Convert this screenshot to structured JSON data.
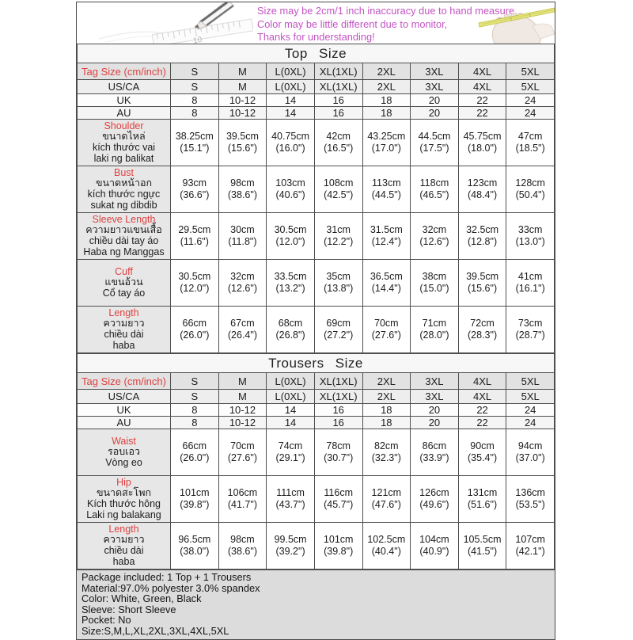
{
  "banner": {
    "lines": [
      "Size may be 2cm/1 inch inaccuracy due to hand measure,",
      "Color may be little different due to monitor,",
      "Thanks for understanding!"
    ],
    "illustrations": {
      "left": "pencil-ruler-sketch-icon",
      "right": "foot-tape-measure-icon"
    }
  },
  "colors": {
    "accent_red": "#e04040",
    "banner_magenta": "#c353c3",
    "label_gray": "#e7e7e7",
    "footer_gray": "#dcdcdc",
    "border": "#4f4f4f"
  },
  "top_table": {
    "title": "Top Size",
    "size_rows": [
      {
        "key": "tag",
        "red": true,
        "label": "Tag Size (cm/inch)",
        "values": [
          "S",
          "M",
          "L(0XL)",
          "XL(1XL)",
          "2XL",
          "3XL",
          "4XL",
          "5XL"
        ]
      },
      {
        "key": "usca",
        "red": false,
        "label": "US/CA",
        "values": [
          "S",
          "M",
          "L(0XL)",
          "XL(1XL)",
          "2XL",
          "3XL",
          "4XL",
          "5XL"
        ]
      },
      {
        "key": "uk",
        "red": false,
        "label": "UK",
        "values": [
          "8",
          "10-12",
          "14",
          "16",
          "18",
          "20",
          "22",
          "24"
        ]
      },
      {
        "key": "au",
        "red": false,
        "label": "AU",
        "values": [
          "8",
          "10-12",
          "14",
          "16",
          "18",
          "20",
          "22",
          "24"
        ]
      }
    ],
    "measure_rows": [
      {
        "name": "Shoulder",
        "subs": [
          "ขนาดไหล่",
          "kích thước vai",
          "laki ng balikat"
        ],
        "cells": [
          {
            "cm": "38.25cm",
            "in": "(15.1\")"
          },
          {
            "cm": "39.5cm",
            "in": "(15.6\")"
          },
          {
            "cm": "40.75cm",
            "in": "(16.0\")"
          },
          {
            "cm": "42cm",
            "in": "(16.5\")"
          },
          {
            "cm": "43.25cm",
            "in": "(17.0\")"
          },
          {
            "cm": "44.5cm",
            "in": "(17.5\")"
          },
          {
            "cm": "45.75cm",
            "in": "(18.0\")"
          },
          {
            "cm": "47cm",
            "in": "(18.5\")"
          }
        ]
      },
      {
        "name": "Bust",
        "subs": [
          "ขนาดหน้าอก",
          "kích thước ngực",
          "sukat ng dibdib"
        ],
        "cells": [
          {
            "cm": "93cm",
            "in": "(36.6\")"
          },
          {
            "cm": "98cm",
            "in": "(38.6\")"
          },
          {
            "cm": "103cm",
            "in": "(40.6\")"
          },
          {
            "cm": "108cm",
            "in": "(42.5\")"
          },
          {
            "cm": "113cm",
            "in": "(44.5\")"
          },
          {
            "cm": "118cm",
            "in": "(46.5\")"
          },
          {
            "cm": "123cm",
            "in": "(48.4\")"
          },
          {
            "cm": "128cm",
            "in": "(50.4\")"
          }
        ]
      },
      {
        "name": "Sleeve Length",
        "subs": [
          "ความยาวแขนเสื้อ",
          "chiều dài tay áo",
          "Haba ng Manggas"
        ],
        "cells": [
          {
            "cm": "29.5cm",
            "in": "(11.6\")"
          },
          {
            "cm": "30cm",
            "in": "(11.8\")"
          },
          {
            "cm": "30.5cm",
            "in": "(12.0\")"
          },
          {
            "cm": "31cm",
            "in": "(12.2\")"
          },
          {
            "cm": "31.5cm",
            "in": "(12.4\")"
          },
          {
            "cm": "32cm",
            "in": "(12.6\")"
          },
          {
            "cm": "32.5cm",
            "in": "(12.8\")"
          },
          {
            "cm": "33cm",
            "in": "(13.0\")"
          }
        ]
      },
      {
        "name": "Cuff",
        "subs": [
          "แขนอ้วน",
          "Cổ tay áo"
        ],
        "cells": [
          {
            "cm": "30.5cm",
            "in": "(12.0\")"
          },
          {
            "cm": "32cm",
            "in": "(12.6\")"
          },
          {
            "cm": "33.5cm",
            "in": "(13.2\")"
          },
          {
            "cm": "35cm",
            "in": "(13.8\")"
          },
          {
            "cm": "36.5cm",
            "in": "(14.4\")"
          },
          {
            "cm": "38cm",
            "in": "(15.0\")"
          },
          {
            "cm": "39.5cm",
            "in": "(15.6\")"
          },
          {
            "cm": "41cm",
            "in": "(16.1\")"
          }
        ]
      },
      {
        "name": "Length",
        "subs": [
          "ความยาว",
          "chiều dài",
          "haba"
        ],
        "cells": [
          {
            "cm": "66cm",
            "in": "(26.0\")"
          },
          {
            "cm": "67cm",
            "in": "(26.4\")"
          },
          {
            "cm": "68cm",
            "in": "(26.8\")"
          },
          {
            "cm": "69cm",
            "in": "(27.2\")"
          },
          {
            "cm": "70cm",
            "in": "(27.6\")"
          },
          {
            "cm": "71cm",
            "in": "(28.0\")"
          },
          {
            "cm": "72cm",
            "in": "(28.3\")"
          },
          {
            "cm": "73cm",
            "in": "(28.7\")"
          }
        ]
      }
    ]
  },
  "trousers_table": {
    "title": "Trousers Size",
    "size_rows": [
      {
        "key": "tag",
        "red": true,
        "label": "Tag Size (cm/inch)",
        "values": [
          "S",
          "M",
          "L(0XL)",
          "XL(1XL)",
          "2XL",
          "3XL",
          "4XL",
          "5XL"
        ]
      },
      {
        "key": "usca",
        "red": false,
        "label": "US/CA",
        "values": [
          "S",
          "M",
          "L(0XL)",
          "XL(1XL)",
          "2XL",
          "3XL",
          "4XL",
          "5XL"
        ]
      },
      {
        "key": "uk",
        "red": false,
        "label": "UK",
        "values": [
          "8",
          "10-12",
          "14",
          "16",
          "18",
          "20",
          "22",
          "24"
        ]
      },
      {
        "key": "au",
        "red": false,
        "label": "AU",
        "values": [
          "8",
          "10-12",
          "14",
          "16",
          "18",
          "20",
          "22",
          "24"
        ]
      }
    ],
    "measure_rows": [
      {
        "name": "Waist",
        "subs": [
          "รอบเอว",
          "Vòng eo"
        ],
        "cells": [
          {
            "cm": "66cm",
            "in": "(26.0\")"
          },
          {
            "cm": "70cm",
            "in": "(27.6\")"
          },
          {
            "cm": "74cm",
            "in": "(29.1\")"
          },
          {
            "cm": "78cm",
            "in": "(30.7\")"
          },
          {
            "cm": "82cm",
            "in": "(32.3\")"
          },
          {
            "cm": "86cm",
            "in": "(33.9\")"
          },
          {
            "cm": "90cm",
            "in": "(35.4\")"
          },
          {
            "cm": "94cm",
            "in": "(37.0\")"
          }
        ]
      },
      {
        "name": "Hip",
        "subs": [
          "ขนาดสะโพก",
          "Kích thước hông",
          "Laki ng balakang"
        ],
        "cells": [
          {
            "cm": "101cm",
            "in": "(39.8\")"
          },
          {
            "cm": "106cm",
            "in": "(41.7\")"
          },
          {
            "cm": "111cm",
            "in": "(43.7\")"
          },
          {
            "cm": "116cm",
            "in": "(45.7\")"
          },
          {
            "cm": "121cm",
            "in": "(47.6\")"
          },
          {
            "cm": "126cm",
            "in": "(49.6\")"
          },
          {
            "cm": "131cm",
            "in": "(51.6\")"
          },
          {
            "cm": "136cm",
            "in": "(53.5\")"
          }
        ]
      },
      {
        "name": "Length",
        "subs": [
          "ความยาว",
          "chiều dài",
          "haba"
        ],
        "cells": [
          {
            "cm": "96.5cm",
            "in": "(38.0\")"
          },
          {
            "cm": "98cm",
            "in": "(38.6\")"
          },
          {
            "cm": "99.5cm",
            "in": "(39.2\")"
          },
          {
            "cm": "101cm",
            "in": "(39.8\")"
          },
          {
            "cm": "102.5cm",
            "in": "(40.4\")"
          },
          {
            "cm": "104cm",
            "in": "(40.9\")"
          },
          {
            "cm": "105.5cm",
            "in": "(41.5\")"
          },
          {
            "cm": "107cm",
            "in": "(42.1\")"
          }
        ]
      }
    ]
  },
  "footer": {
    "lines": [
      "Package included: 1 Top + 1 Trousers",
      "Material:97.0% polyester 3.0% spandex",
      "Color: White, Green, Black",
      "Sleeve: Short Sleeve",
      "Pocket: No",
      "Size:S,M,L,XL,2XL,3XL,4XL,5XL"
    ]
  }
}
